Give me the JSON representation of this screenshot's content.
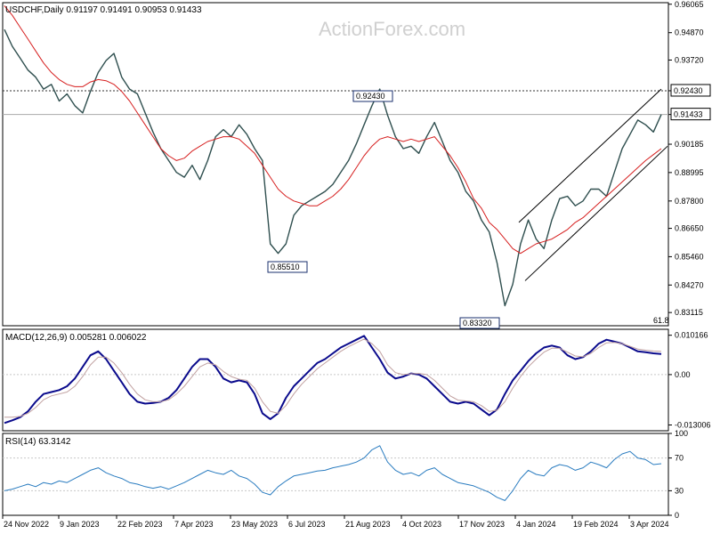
{
  "colors": {
    "price": "#2f4f4f",
    "sma": "#d61f1f",
    "macd": "#0a0a8c",
    "signal": "#c0a0a0",
    "rsi": "#2a7cc0",
    "channel": "#000000",
    "grid": "#c8c8c8",
    "panel_border": "#000000",
    "label_box": "#1a2f6c"
  },
  "chart_data": [
    {
      "type": "line",
      "name": "price",
      "title": "USDCHF,Daily",
      "ohlc_text": "0.91197 0.91491 0.90953 0.91433",
      "ylim": [
        0.8256,
        0.9613
      ],
      "yticks": [
        "0.96065",
        "0.94870",
        "0.93720",
        "0.92430",
        "0.91433",
        "0.90185",
        "0.88995",
        "0.87800",
        "0.86650",
        "0.85460",
        "0.84270",
        "0.83115"
      ],
      "annotations": [
        "0.92430",
        "0.85510",
        "0.83320",
        "61.8"
      ],
      "current_price": "0.91433",
      "x_labels": [
        "24 Nov 2022",
        "9 Jan 2023",
        "22 Feb 2023",
        "7 Apr 2023",
        "23 May 2023",
        "6 Jul 2023",
        "21 Aug 2023",
        "4 Oct 2023",
        "17 Nov 2023",
        "4 Jan 2024",
        "19 Feb 2024",
        "3 Apr 2024"
      ],
      "series": [
        {
          "values": [
            0.95,
            0.943,
            0.938,
            0.933,
            0.93,
            0.925,
            0.927,
            0.92,
            0.923,
            0.918,
            0.915,
            0.924,
            0.932,
            0.937,
            0.94,
            0.93,
            0.925,
            0.923,
            0.915,
            0.907,
            0.9,
            0.895,
            0.89,
            0.888,
            0.893,
            0.887,
            0.895,
            0.905,
            0.908,
            0.905,
            0.91,
            0.906,
            0.9,
            0.895,
            0.86,
            0.856,
            0.86,
            0.872,
            0.876,
            0.878,
            0.88,
            0.882,
            0.885,
            0.89,
            0.895,
            0.902,
            0.91,
            0.918,
            0.925,
            0.914,
            0.905,
            0.9,
            0.901,
            0.898,
            0.905,
            0.911,
            0.903,
            0.895,
            0.89,
            0.882,
            0.878,
            0.87,
            0.865,
            0.852,
            0.834,
            0.843,
            0.86,
            0.87,
            0.862,
            0.858,
            0.87,
            0.879,
            0.88,
            0.876,
            0.878,
            0.883,
            0.883,
            0.88,
            0.89,
            0.9,
            0.906,
            0.912,
            0.91,
            0.907,
            0.9143
          ]
        },
        {
          "values": [
            0.96,
            0.956,
            0.951,
            0.946,
            0.941,
            0.936,
            0.932,
            0.929,
            0.927,
            0.926,
            0.926,
            0.928,
            0.929,
            0.9285,
            0.927,
            0.924,
            0.92,
            0.915,
            0.91,
            0.905,
            0.9,
            0.897,
            0.895,
            0.896,
            0.899,
            0.901,
            0.903,
            0.904,
            0.905,
            0.905,
            0.904,
            0.901,
            0.898,
            0.893,
            0.888,
            0.883,
            0.88,
            0.878,
            0.877,
            0.876,
            0.876,
            0.878,
            0.88,
            0.883,
            0.887,
            0.892,
            0.897,
            0.901,
            0.904,
            0.905,
            0.904,
            0.903,
            0.904,
            0.903,
            0.904,
            0.905,
            0.901,
            0.897,
            0.892,
            0.886,
            0.879,
            0.875,
            0.869,
            0.866,
            0.862,
            0.858,
            0.856,
            0.858,
            0.86,
            0.861,
            0.862,
            0.864,
            0.866,
            0.869,
            0.871,
            0.874,
            0.877,
            0.88,
            0.883,
            0.886,
            0.889,
            0.892,
            0.895,
            0.8975,
            0.9
          ]
        }
      ]
    },
    {
      "type": "line",
      "name": "macd",
      "title": "MACD(12,26,9) 0.005281 0.006022",
      "ylim": [
        -0.0145,
        0.0117
      ],
      "yticks": [
        "0.010166",
        "0.00",
        "-0.013006"
      ],
      "series": [
        {
          "values": [
            -0.0125,
            -0.0118,
            -0.011,
            -0.0095,
            -0.007,
            -0.005,
            -0.0045,
            -0.004,
            -0.003,
            -0.001,
            0.002,
            0.005,
            0.006,
            0.004,
            0.001,
            -0.002,
            -0.005,
            -0.007,
            -0.0075,
            -0.0073,
            -0.007,
            -0.006,
            -0.004,
            -0.001,
            0.002,
            0.004,
            0.004,
            0.002,
            -0.001,
            -0.002,
            -0.0015,
            -0.002,
            -0.005,
            -0.01,
            -0.0115,
            -0.01,
            -0.006,
            -0.003,
            -0.001,
            0.001,
            0.003,
            0.004,
            0.0055,
            0.007,
            0.008,
            0.009,
            0.01,
            0.007,
            0.004,
            0.0005,
            -0.001,
            -0.0005,
            0.0003,
            0.0,
            -0.001,
            -0.003,
            -0.005,
            -0.007,
            -0.0075,
            -0.007,
            -0.0075,
            -0.009,
            -0.0105,
            -0.009,
            -0.005,
            -0.0015,
            0.001,
            0.0035,
            0.0055,
            0.007,
            0.0075,
            0.007,
            0.005,
            0.004,
            0.0045,
            0.006,
            0.008,
            0.009,
            0.0085,
            0.008,
            0.007,
            0.006,
            0.0058,
            0.0055,
            0.0053
          ]
        },
        {
          "values": [
            -0.011,
            -0.011,
            -0.0108,
            -0.01,
            -0.0085,
            -0.0065,
            -0.0055,
            -0.005,
            -0.0045,
            -0.003,
            -0.0005,
            0.0025,
            0.0045,
            0.0045,
            0.003,
            0.0005,
            -0.0025,
            -0.005,
            -0.0065,
            -0.007,
            -0.007,
            -0.0065,
            -0.005,
            -0.003,
            -0.0005,
            0.002,
            0.003,
            0.0025,
            0.0008,
            -0.0005,
            -0.0012,
            -0.0015,
            -0.0035,
            -0.007,
            -0.0095,
            -0.01,
            -0.008,
            -0.005,
            -0.0025,
            -0.0005,
            0.0015,
            0.003,
            0.0045,
            0.006,
            0.0072,
            0.0082,
            0.0092,
            0.008,
            0.006,
            0.0025,
            0.0005,
            0.0,
            0.0002,
            0.0003,
            0.0,
            -0.0015,
            -0.0035,
            -0.0055,
            -0.0066,
            -0.0068,
            -0.007,
            -0.008,
            -0.0095,
            -0.0092,
            -0.007,
            -0.0035,
            -0.0005,
            0.002,
            0.004,
            0.0058,
            0.0068,
            0.0068,
            0.0058,
            0.0048,
            0.0046,
            0.0055,
            0.007,
            0.0082,
            0.0083,
            0.008,
            0.0073,
            0.0066,
            0.0063,
            0.0061,
            0.006
          ]
        }
      ]
    },
    {
      "type": "line",
      "name": "rsi",
      "title": "RSI(14) 63.3142",
      "ylim": [
        0,
        100
      ],
      "yticks": [
        "100",
        "70",
        "30",
        "0"
      ],
      "series": [
        {
          "values": [
            30,
            32,
            35,
            38,
            35,
            40,
            38,
            42,
            40,
            45,
            50,
            55,
            58,
            52,
            48,
            45,
            40,
            38,
            35,
            33,
            35,
            32,
            36,
            40,
            45,
            50,
            55,
            52,
            50,
            55,
            48,
            45,
            38,
            28,
            25,
            35,
            42,
            48,
            50,
            52,
            54,
            55,
            58,
            60,
            62,
            65,
            70,
            80,
            85,
            65,
            55,
            50,
            52,
            48,
            55,
            58,
            50,
            45,
            40,
            38,
            36,
            32,
            28,
            22,
            18,
            30,
            45,
            55,
            50,
            48,
            58,
            62,
            60,
            55,
            58,
            65,
            62,
            58,
            68,
            75,
            78,
            70,
            68,
            62,
            63
          ]
        }
      ]
    }
  ]
}
